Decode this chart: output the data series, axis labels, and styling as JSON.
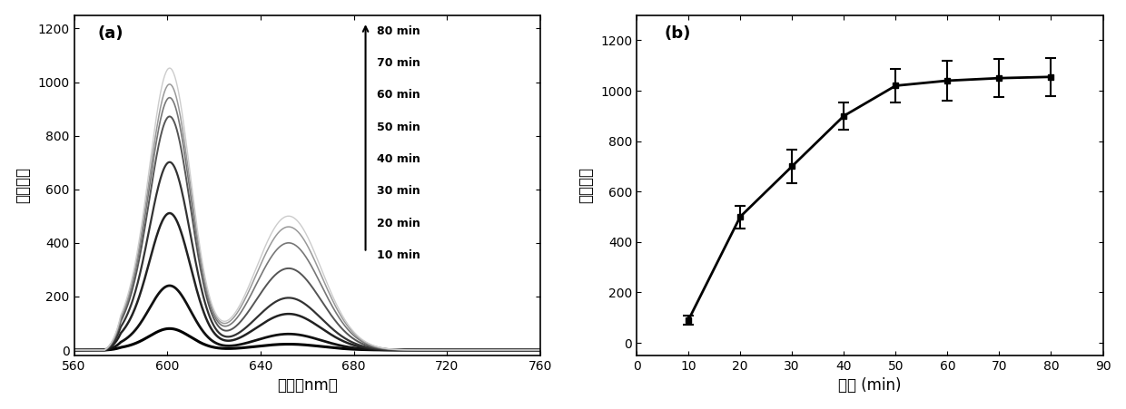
{
  "panel_a": {
    "label": "(a)",
    "xlabel": "波长（nm）",
    "ylabel": "荧光强度",
    "xlim": [
      560,
      760
    ],
    "ylim": [
      -20,
      1250
    ],
    "xticks": [
      560,
      600,
      640,
      680,
      720,
      760
    ],
    "yticks": [
      0,
      200,
      400,
      600,
      800,
      1000,
      1200
    ],
    "times": [
      10,
      20,
      30,
      40,
      50,
      60,
      70,
      80
    ],
    "peak1_wl": 601,
    "peak2_wl": 652,
    "peak1_heights": [
      80,
      240,
      510,
      700,
      870,
      940,
      990,
      1050
    ],
    "peak2_heights": [
      22,
      60,
      135,
      195,
      305,
      400,
      460,
      500
    ],
    "legend_labels": [
      "80 min",
      "70 min",
      "60 min",
      "50 min",
      "40 min",
      "30 min",
      "20 min",
      "10 min"
    ],
    "line_colors": [
      "#000000",
      "#111111",
      "#222222",
      "#333333",
      "#555555",
      "#777777",
      "#999999",
      "#cccccc"
    ],
    "line_widths": [
      2.2,
      2.0,
      1.8,
      1.6,
      1.4,
      1.2,
      1.1,
      1.0
    ]
  },
  "panel_b": {
    "label": "(b)",
    "xlabel": "时间 (min)",
    "ylabel": "荧光强度",
    "xlim": [
      0,
      90
    ],
    "ylim": [
      -50,
      1300
    ],
    "xticks": [
      0,
      10,
      20,
      30,
      40,
      50,
      60,
      70,
      80,
      90
    ],
    "yticks": [
      0,
      200,
      400,
      600,
      800,
      1000,
      1200
    ],
    "x": [
      10,
      20,
      30,
      40,
      50,
      60,
      70,
      80
    ],
    "y": [
      90,
      500,
      700,
      900,
      1020,
      1040,
      1050,
      1055
    ],
    "yerr": [
      18,
      45,
      65,
      55,
      65,
      80,
      75,
      75
    ],
    "line_color": "#000000"
  }
}
